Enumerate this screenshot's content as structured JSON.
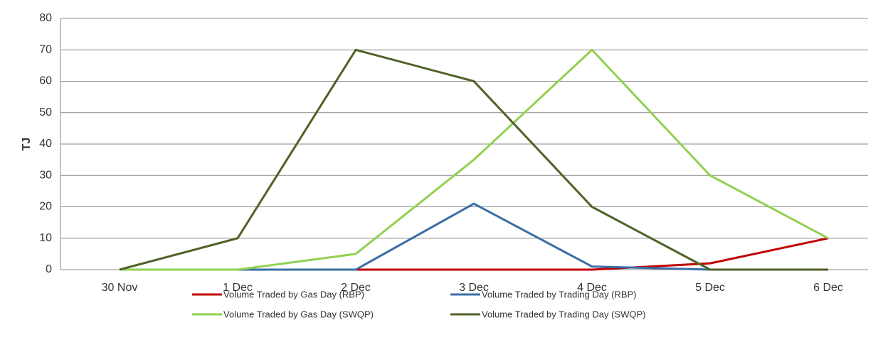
{
  "chart_data": {
    "type": "line",
    "y_label": "TJ",
    "categories": [
      "30 Nov",
      "1 Dec",
      "2 Dec",
      "3 Dec",
      "4 Dec",
      "5 Dec",
      "6 Dec"
    ],
    "series": [
      {
        "name": "Volume Traded by Gas Day (RBP)",
        "color": "#c00000",
        "values": [
          0,
          0,
          0,
          0,
          0,
          2,
          10
        ]
      },
      {
        "name": "Volume Traded by Trading Day (RBP)",
        "color": "#3b6ea5",
        "values": [
          0,
          0,
          0,
          21,
          1,
          0,
          0
        ]
      },
      {
        "name": "Volume Traded by Gas Day (SWQP)",
        "color": "#92d050",
        "values": [
          0,
          0,
          5,
          35,
          70,
          30,
          10
        ]
      },
      {
        "name": "Volume Traded by Trading Day (SWQP)",
        "color": "#4f6228",
        "values": [
          0,
          10,
          70,
          60,
          20,
          0,
          0
        ]
      }
    ],
    "ylim": [
      0,
      80
    ],
    "yticks": [
      0,
      10,
      20,
      30,
      40,
      50,
      60,
      70,
      80
    ],
    "grid": true,
    "legend": "bottom"
  }
}
